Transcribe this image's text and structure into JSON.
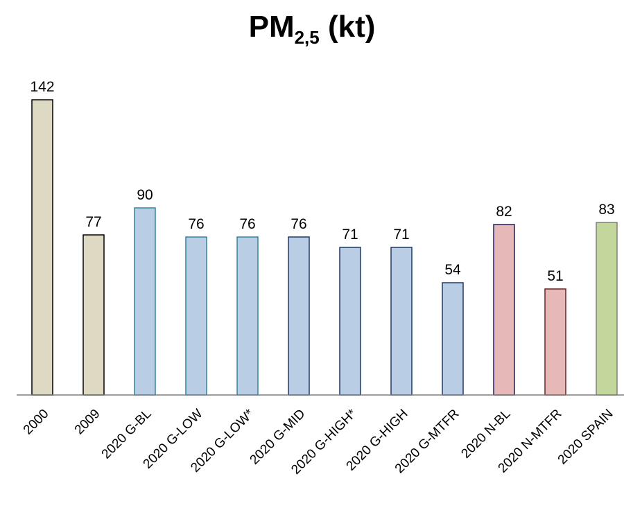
{
  "chart_data": {
    "type": "bar",
    "title": {
      "main": "PM",
      "subscript": "2,5",
      "suffix": " (kt)"
    },
    "xlabel": "",
    "ylabel": "",
    "ylim": [
      0,
      150
    ],
    "grid": false,
    "categories": [
      "2000",
      "2009",
      "2020 G-BL",
      "2020 G-LOW",
      "2020 G-LOW*",
      "2020 G-MID",
      "2020 G-HIGH*",
      "2020 G-HIGH",
      "2020 G-MTFR",
      "2020 N-BL",
      "2020 N-MTFR",
      "2020 SPAIN"
    ],
    "values": [
      142,
      77,
      90,
      76,
      76,
      76,
      71,
      71,
      54,
      82,
      51,
      83
    ],
    "fill_colors": [
      "#ddd9c3",
      "#ddd9c3",
      "#b9cde5",
      "#b9cde5",
      "#b9cde5",
      "#b9cde5",
      "#b9cde5",
      "#b9cde5",
      "#b9cde5",
      "#e6b9b8",
      "#e6b9b8",
      "#c3d69b"
    ],
    "stroke_colors": [
      "#000000",
      "#000000",
      "#31859c",
      "#31859c",
      "#31859c",
      "#1f3864",
      "#1f3864",
      "#1f3864",
      "#1f3864",
      "#1f1f5a",
      "#632523",
      "#7f7f7f"
    ]
  }
}
